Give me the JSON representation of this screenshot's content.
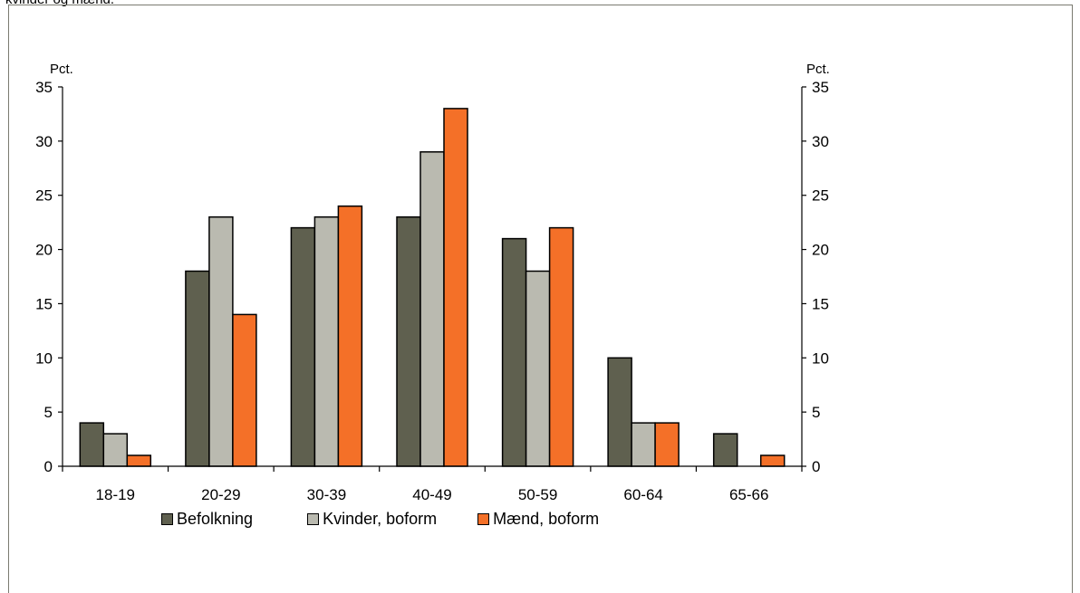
{
  "caption": "kvinder og mænd.",
  "left_unit": "Pct.",
  "right_unit": "Pct.",
  "chart_data": {
    "type": "bar",
    "categories": [
      "18-19",
      "20-29",
      "30-39",
      "40-49",
      "50-59",
      "60-64",
      "65-66"
    ],
    "series": [
      {
        "name": "Befolkning",
        "values": [
          4,
          18,
          22,
          23,
          21,
          10,
          3
        ],
        "color": "#5f604f"
      },
      {
        "name": "Kvinder, boform",
        "values": [
          3,
          23,
          23,
          29,
          18,
          4,
          0
        ],
        "color": "#babab0"
      },
      {
        "name": "Mænd, boform",
        "values": [
          1,
          14,
          24,
          33,
          22,
          4,
          1
        ],
        "color": "#f47028"
      }
    ],
    "ylim": [
      0,
      35
    ],
    "yticks": [
      0,
      5,
      10,
      15,
      20,
      25,
      30,
      35
    ],
    "secondary_ylim": [
      0,
      35
    ],
    "grid": false,
    "legend_position": "bottom"
  }
}
